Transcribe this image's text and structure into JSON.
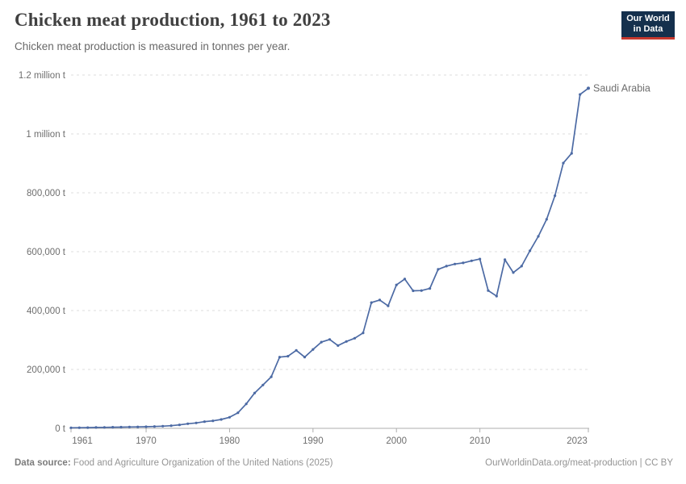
{
  "header": {
    "title": "Chicken meat production, 1961 to 2023",
    "subtitle": "Chicken meat production is measured in tonnes per year.",
    "logo": {
      "line1": "Our World",
      "line2": "in Data",
      "bg_color": "#15304d",
      "accent_color": "#c7382e"
    }
  },
  "chart_data": {
    "type": "line",
    "title": "Chicken meat production, 1961 to 2023",
    "subtitle": "Chicken meat production is measured in tonnes per year.",
    "unit": "tonnes",
    "xlim": [
      1961,
      2023
    ],
    "ylim": [
      0,
      1200000
    ],
    "grid": "dashed-horizontal",
    "legend_position": "end-of-line-label",
    "x_ticks": [
      {
        "year": 1961,
        "label": "1961"
      },
      {
        "year": 1970,
        "label": "1970"
      },
      {
        "year": 1980,
        "label": "1980"
      },
      {
        "year": 1990,
        "label": "1990"
      },
      {
        "year": 2000,
        "label": "2000"
      },
      {
        "year": 2010,
        "label": "2010"
      },
      {
        "year": 2023,
        "label": "2023"
      }
    ],
    "y_ticks": [
      {
        "value": 0,
        "label": "0 t"
      },
      {
        "value": 200000,
        "label": "200,000 t"
      },
      {
        "value": 400000,
        "label": "400,000 t"
      },
      {
        "value": 600000,
        "label": "600,000 t"
      },
      {
        "value": 800000,
        "label": "800,000 t"
      },
      {
        "value": 1000000,
        "label": "1 million t"
      },
      {
        "value": 1200000,
        "label": "1.2 million t"
      }
    ],
    "years": [
      1961,
      1962,
      1963,
      1964,
      1965,
      1966,
      1967,
      1968,
      1969,
      1970,
      1971,
      1972,
      1973,
      1974,
      1975,
      1976,
      1977,
      1978,
      1979,
      1980,
      1981,
      1982,
      1983,
      1984,
      1985,
      1986,
      1987,
      1988,
      1989,
      1990,
      1991,
      1992,
      1993,
      1994,
      1995,
      1996,
      1997,
      1998,
      1999,
      2000,
      2001,
      2002,
      2003,
      2004,
      2005,
      2006,
      2007,
      2008,
      2009,
      2010,
      2011,
      2012,
      2013,
      2014,
      2015,
      2016,
      2017,
      2018,
      2019,
      2020,
      2021,
      2022,
      2023
    ],
    "series": [
      {
        "name": "Saudi Arabia",
        "color": "#4C6AA4",
        "values": [
          2000,
          2300,
          2600,
          3000,
          3400,
          3800,
          4200,
          4600,
          5000,
          5500,
          6300,
          7500,
          9000,
          11800,
          15600,
          18400,
          22700,
          25500,
          30000,
          37500,
          53000,
          83000,
          120000,
          147000,
          175000,
          242000,
          245000,
          265000,
          242000,
          268000,
          293000,
          302000,
          281000,
          295000,
          306000,
          324000,
          427000,
          436000,
          416000,
          487000,
          507000,
          467000,
          468000,
          475000,
          540000,
          551000,
          558000,
          562000,
          569000,
          575000,
          468000,
          449000,
          573000,
          529000,
          551000,
          603000,
          652000,
          710000,
          790000,
          901000,
          934000,
          1134000,
          1155000
        ]
      }
    ],
    "colors": {
      "line": "#4C6AA4",
      "grid": "#dcdcdc",
      "axis": "#adadad",
      "tick_text": "#6e6e6e"
    }
  },
  "footer": {
    "source_label": "Data source:",
    "source_text": " Food and Agriculture Organization of the United Nations (2025)",
    "rights": "OurWorldinData.org/meat-production | CC BY"
  }
}
